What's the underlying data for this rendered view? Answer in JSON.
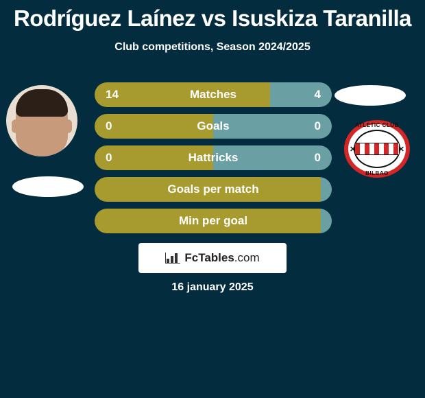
{
  "title": "Rodríguez Laínez vs Isuskiza Taranilla",
  "subtitle": "Club competitions, Season 2024/2025",
  "date": "16 january 2025",
  "brand": {
    "name": "FcTables",
    "domain": ".com"
  },
  "colors": {
    "left": "#a79a2e",
    "right": "#6aa0a3",
    "barText": "#ffffff"
  },
  "bars": [
    {
      "label": "Matches",
      "left_value": "14",
      "right_value": "4",
      "left_pct": 74,
      "right_pct": 26,
      "left_color": "#a79a2e",
      "right_color": "#6aa0a3"
    },
    {
      "label": "Goals",
      "left_value": "0",
      "right_value": "0",
      "left_pct": 50,
      "right_pct": 50,
      "left_color": "#a79a2e",
      "right_color": "#6aa0a3"
    },
    {
      "label": "Hattricks",
      "left_value": "0",
      "right_value": "0",
      "left_pct": 50,
      "right_pct": 50,
      "left_color": "#a79a2e",
      "right_color": "#6aa0a3"
    },
    {
      "label": "Goals per match",
      "left_value": "",
      "right_value": "",
      "left_pct": 100,
      "right_pct": 0,
      "left_color": "#a79a2e",
      "right_color": "#6aa0a3"
    },
    {
      "label": "Min per goal",
      "left_value": "",
      "right_value": "",
      "left_pct": 100,
      "right_pct": 0,
      "left_color": "#a79a2e",
      "right_color": "#6aa0a3"
    }
  ],
  "club_badge": {
    "top_text": "ATLETIC CLUB",
    "bottom_text": "BILBAO"
  }
}
